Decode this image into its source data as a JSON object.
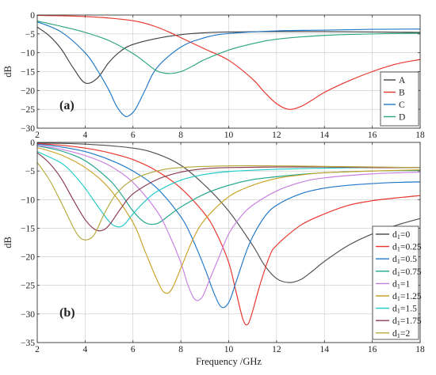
{
  "chart_data": [
    {
      "type": "line",
      "panel_label": "(a)",
      "xlabel": "",
      "ylabel": "dB",
      "xlim": [
        2,
        18
      ],
      "ylim": [
        -30,
        0
      ],
      "xticks": [
        2,
        4,
        6,
        8,
        10,
        12,
        14,
        16,
        18
      ],
      "yticks": [
        0,
        -5,
        -10,
        -15,
        -20,
        -25,
        -30
      ],
      "grid": true,
      "legend_position": "right",
      "series": [
        {
          "name": "A",
          "color": "#404040",
          "x": [
            2,
            2.5,
            3,
            3.5,
            4,
            4.5,
            5,
            5.5,
            6,
            7,
            8,
            9,
            10,
            12,
            14,
            16,
            18
          ],
          "y": [
            -3.2,
            -5.5,
            -9,
            -14,
            -18,
            -16.8,
            -12.5,
            -9.5,
            -7.8,
            -6.2,
            -5.2,
            -4.7,
            -4.5,
            -4.4,
            -4.4,
            -4.5,
            -4.6
          ]
        },
        {
          "name": "B",
          "color": "#e8332a",
          "x": [
            2,
            3,
            4,
            5,
            6,
            6.5,
            7,
            7.5,
            8,
            9,
            10,
            11,
            11.5,
            12,
            12.5,
            13,
            13.5,
            14,
            15,
            16,
            17,
            18
          ],
          "y": [
            -0.1,
            -0.2,
            -0.4,
            -0.8,
            -1.5,
            -2.2,
            -3.2,
            -4.5,
            -6,
            -9,
            -12,
            -17,
            -20.5,
            -23.5,
            -25,
            -24.3,
            -22.5,
            -20.5,
            -17.5,
            -15,
            -13,
            -11.8
          ]
        },
        {
          "name": "C",
          "color": "#1f77c8",
          "x": [
            2,
            3,
            4,
            4.5,
            5,
            5.3,
            5.6,
            5.8,
            6.1,
            6.5,
            7,
            8,
            9,
            10,
            12,
            14,
            16,
            18
          ],
          "y": [
            -1.8,
            -4.5,
            -10,
            -14.5,
            -20,
            -24,
            -26.5,
            -26.8,
            -25,
            -20,
            -14,
            -8.5,
            -6,
            -4.9,
            -4.2,
            -4,
            -3.8,
            -3.7
          ]
        },
        {
          "name": "D",
          "color": "#2aa57e",
          "x": [
            2,
            3,
            4,
            5,
            6,
            6.5,
            7,
            7.5,
            8,
            8.5,
            9,
            10,
            11,
            12,
            14,
            16,
            18
          ],
          "y": [
            -1.6,
            -3,
            -4.6,
            -6.8,
            -10.2,
            -12.5,
            -14.8,
            -15.5,
            -15,
            -13.5,
            -11.8,
            -9.3,
            -7.6,
            -6.4,
            -5.4,
            -5,
            -4.8
          ]
        }
      ]
    },
    {
      "type": "line",
      "panel_label": "(b)",
      "xlabel": "Frequency /GHz",
      "ylabel": "dB",
      "xlim": [
        2,
        18
      ],
      "ylim": [
        -35,
        0
      ],
      "xticks": [
        2,
        4,
        6,
        8,
        10,
        12,
        14,
        16,
        18
      ],
      "yticks": [
        0,
        -5,
        -10,
        -15,
        -20,
        -25,
        -30,
        -35
      ],
      "grid": true,
      "legend_position": "bottom-right",
      "series": [
        {
          "name": "d1=0",
          "color": "#505050",
          "x": [
            2,
            4,
            6,
            7,
            8,
            9,
            10,
            11,
            11.5,
            12,
            12.5,
            13,
            13.5,
            14,
            15,
            16,
            17,
            18
          ],
          "y": [
            -0.1,
            -0.3,
            -1,
            -2,
            -4,
            -7.5,
            -12,
            -18,
            -21.5,
            -23.8,
            -24.5,
            -24,
            -22.5,
            -20.8,
            -18,
            -16,
            -14.5,
            -13.3
          ]
        },
        {
          "name": "d1=0.25",
          "color": "#e8332a",
          "x": [
            2,
            3,
            4,
            5,
            6,
            7,
            8,
            9,
            9.5,
            10,
            10.3,
            10.6,
            10.8,
            11,
            11.3,
            11.7,
            12,
            13,
            14,
            15,
            16,
            17,
            18
          ],
          "y": [
            -0.2,
            -0.5,
            -1,
            -1.8,
            -3,
            -5,
            -8,
            -12.5,
            -16,
            -21,
            -26,
            -31,
            -31.8,
            -29.5,
            -25,
            -20,
            -18,
            -14.5,
            -12.5,
            -11,
            -10.2,
            -9.7,
            -9.3
          ]
        },
        {
          "name": "d1=0.5",
          "color": "#1f77c8",
          "x": [
            2,
            3,
            4,
            5,
            6,
            7,
            8,
            8.5,
            9,
            9.4,
            9.7,
            10,
            10.3,
            10.7,
            11,
            11.5,
            12,
            13,
            14,
            15,
            16,
            17,
            18
          ],
          "y": [
            -0.3,
            -0.8,
            -1.6,
            -3,
            -5,
            -8,
            -13,
            -17,
            -22,
            -26.5,
            -28.8,
            -28,
            -24.5,
            -19.5,
            -16.5,
            -13,
            -11,
            -9,
            -8,
            -7.5,
            -7.2,
            -7,
            -6.9
          ]
        },
        {
          "name": "d1=0.75",
          "color": "#1aa58a",
          "x": [
            2,
            3,
            4,
            5,
            5.5,
            6,
            6.5,
            7,
            7.5,
            8,
            9,
            10,
            11,
            12,
            13,
            14,
            16,
            18
          ],
          "y": [
            -0.6,
            -1.5,
            -3.2,
            -6.5,
            -9,
            -12,
            -14,
            -14.2,
            -12.8,
            -11.3,
            -9,
            -7.5,
            -6.5,
            -6,
            -5.6,
            -5.3,
            -5,
            -4.9
          ]
        },
        {
          "name": "d1=1",
          "color": "#c77ee0",
          "x": [
            2,
            3,
            4,
            5,
            6,
            7,
            7.5,
            8,
            8.3,
            8.6,
            8.9,
            9.2,
            9.6,
            10,
            10.5,
            11,
            12,
            13,
            14,
            16,
            18
          ],
          "y": [
            -0.5,
            -1.2,
            -2.3,
            -4,
            -7,
            -12,
            -16,
            -21,
            -25,
            -27.5,
            -27,
            -24,
            -20,
            -16,
            -13,
            -11,
            -8.5,
            -7,
            -6.2,
            -5.5,
            -5.2
          ]
        },
        {
          "name": "d1=1.25",
          "color": "#c9a227",
          "x": [
            2,
            3,
            4,
            5,
            6,
            6.5,
            7,
            7.3,
            7.6,
            8,
            8.5,
            9,
            10,
            11,
            12,
            13,
            14,
            16,
            18
          ],
          "y": [
            -0.9,
            -2.2,
            -4.4,
            -8,
            -14,
            -19,
            -24,
            -26.2,
            -25.8,
            -22,
            -17,
            -13.5,
            -9.5,
            -7.5,
            -6.3,
            -5.7,
            -5.3,
            -5,
            -4.8
          ]
        },
        {
          "name": "d1=1.5",
          "color": "#1ecbc9",
          "x": [
            2,
            3,
            3.5,
            4,
            4.5,
            5,
            5.3,
            5.6,
            6,
            6.5,
            7,
            8,
            9,
            10,
            12,
            14,
            16,
            18
          ],
          "y": [
            -1.6,
            -3.6,
            -5.5,
            -8,
            -11,
            -13.8,
            -14.7,
            -14.5,
            -12.5,
            -10.3,
            -8.6,
            -6.6,
            -5.6,
            -5.1,
            -4.7,
            -4.5,
            -4.4,
            -4.4
          ]
        },
        {
          "name": "d1=1.75",
          "color": "#8b3a50",
          "x": [
            2,
            2.5,
            3,
            3.5,
            4,
            4.4,
            4.7,
            5,
            5.5,
            6,
            7,
            8,
            9,
            10,
            12,
            14,
            16,
            18
          ],
          "y": [
            -1.8,
            -3.6,
            -6.3,
            -10,
            -13.5,
            -15.2,
            -15.4,
            -14.5,
            -11.5,
            -9,
            -6.5,
            -5.2,
            -4.6,
            -4.4,
            -4.3,
            -4.3,
            -4.4,
            -4.4
          ]
        },
        {
          "name": "d1=2",
          "color": "#b5a83a",
          "x": [
            2,
            2.5,
            3,
            3.5,
            3.8,
            4.1,
            4.4,
            4.8,
            5.3,
            6,
            7,
            8,
            10,
            12,
            14,
            16,
            18
          ],
          "y": [
            -3.5,
            -6.5,
            -10.5,
            -14.8,
            -16.7,
            -17,
            -16,
            -12.5,
            -9,
            -6.5,
            -5,
            -4.4,
            -4.1,
            -4.1,
            -4.2,
            -4.3,
            -4.4
          ]
        }
      ]
    }
  ]
}
